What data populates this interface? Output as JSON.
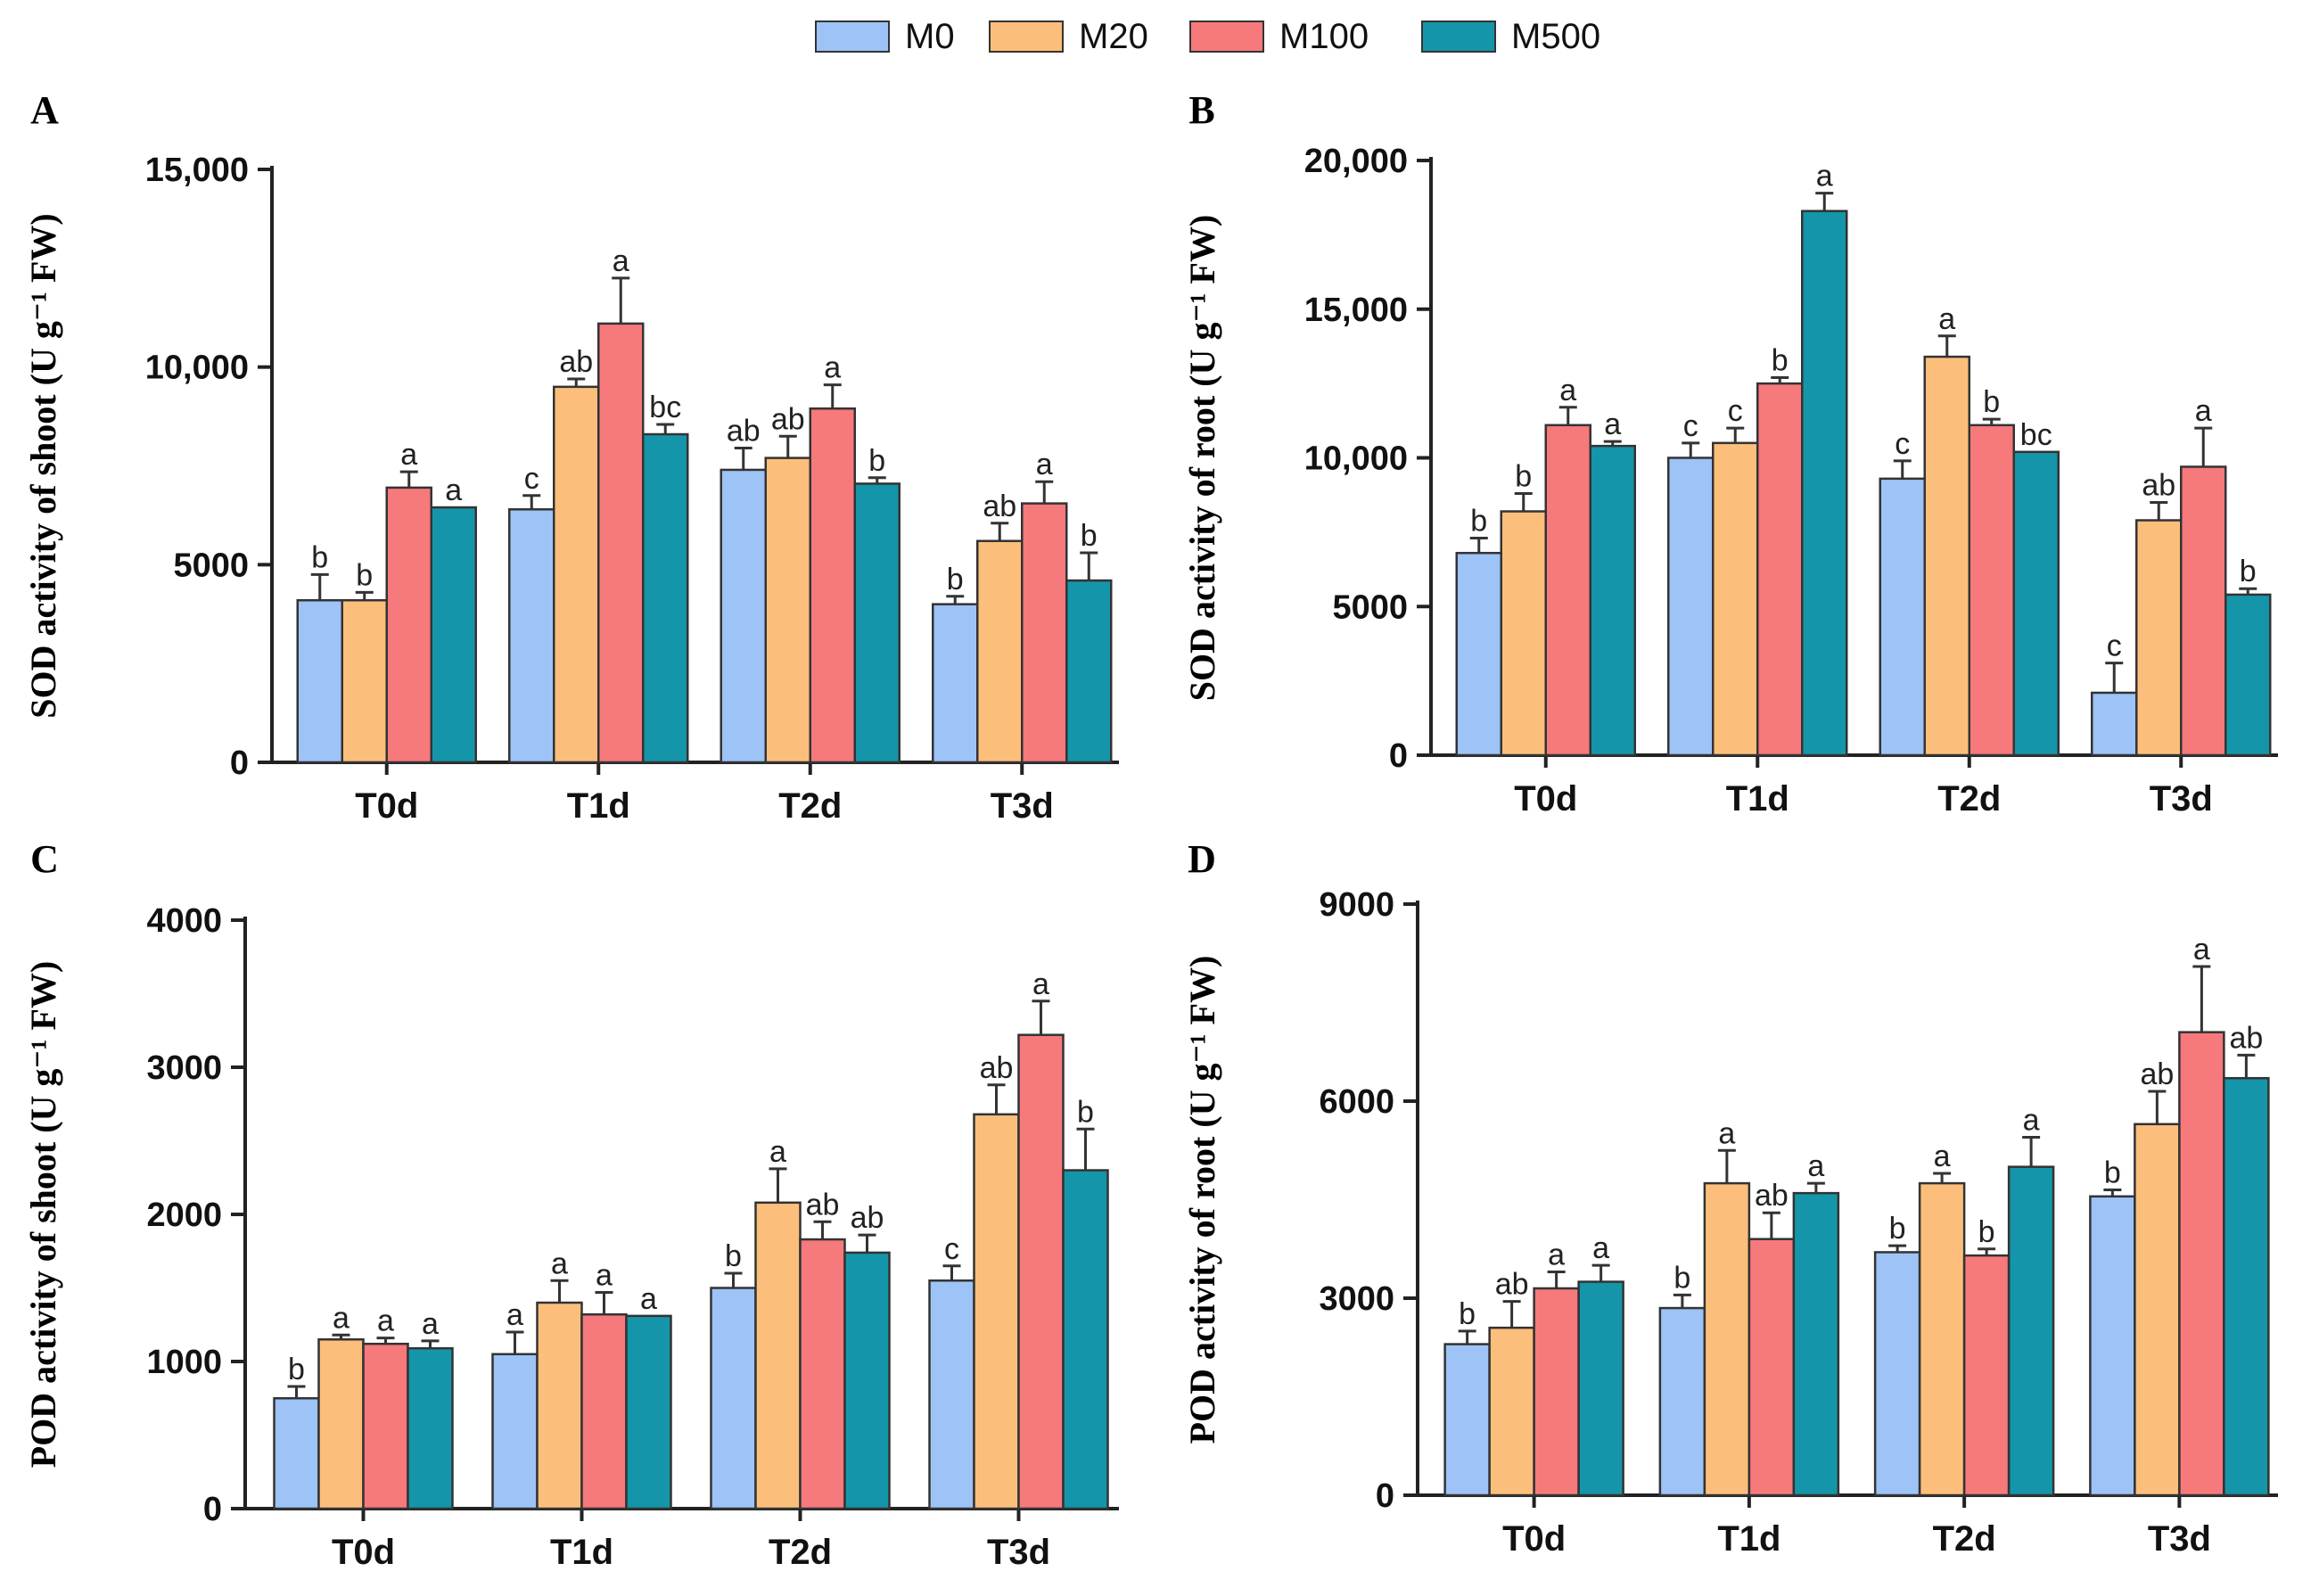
{
  "legend": [
    {
      "name": "M0",
      "color": "#9dc3f7"
    },
    {
      "name": "M20",
      "color": "#fcbf7b"
    },
    {
      "name": "M100",
      "color": "#f6797c"
    },
    {
      "name": "M500",
      "color": "#1595a9"
    }
  ],
  "chart_data": [
    {
      "type": "bar",
      "panel": "A",
      "ylabel": "SOD activity of shoot (U g⁻¹ FW)",
      "ylim": [
        0,
        15000
      ],
      "yticks": [
        0,
        5000,
        10000,
        15000
      ],
      "ytick_labels": [
        "0",
        "5000",
        "10,000",
        "15,000"
      ],
      "categories": [
        "T0d",
        "T1d",
        "T2d",
        "T3d"
      ],
      "series": [
        {
          "name": "M0",
          "values": [
            4100,
            6400,
            7400,
            4000
          ],
          "errors": [
            650,
            350,
            550,
            200
          ],
          "letters": [
            "b",
            "c",
            "ab",
            "b"
          ]
        },
        {
          "name": "M20",
          "values": [
            4100,
            9500,
            7700,
            5600
          ],
          "errors": [
            200,
            200,
            550,
            450
          ],
          "letters": [
            "b",
            "ab",
            "ab",
            "ab"
          ]
        },
        {
          "name": "M100",
          "values": [
            6950,
            11100,
            8950,
            6550
          ],
          "errors": [
            400,
            1150,
            600,
            550
          ],
          "letters": [
            "a",
            "a",
            "a",
            "a"
          ]
        },
        {
          "name": "M500",
          "values": [
            6450,
            8300,
            7050,
            4600
          ],
          "errors": [
            0,
            250,
            150,
            700
          ],
          "letters": [
            "a",
            "bc",
            "b",
            "b"
          ]
        }
      ]
    },
    {
      "type": "bar",
      "panel": "B",
      "ylabel": "SOD activity of root (U g⁻¹ FW)",
      "ylim": [
        0,
        20000
      ],
      "yticks": [
        0,
        5000,
        10000,
        15000,
        20000
      ],
      "ytick_labels": [
        "0",
        "5000",
        "10,000",
        "15,000",
        "20,000"
      ],
      "categories": [
        "T0d",
        "T1d",
        "T2d",
        "T3d"
      ],
      "series": [
        {
          "name": "M0",
          "values": [
            6800,
            10000,
            9300,
            2100
          ],
          "errors": [
            500,
            500,
            600,
            1000
          ],
          "letters": [
            "b",
            "c",
            "c",
            "c"
          ]
        },
        {
          "name": "M20",
          "values": [
            8200,
            10500,
            13400,
            7900
          ],
          "errors": [
            600,
            500,
            700,
            600
          ],
          "letters": [
            "b",
            "c",
            "a",
            "ab"
          ]
        },
        {
          "name": "M100",
          "values": [
            11100,
            12500,
            11100,
            9700
          ],
          "errors": [
            600,
            200,
            200,
            1300
          ],
          "letters": [
            "a",
            "b",
            "b",
            "a"
          ]
        },
        {
          "name": "M500",
          "values": [
            10400,
            18300,
            10200,
            5400
          ],
          "errors": [
            150,
            600,
            0,
            200
          ],
          "letters": [
            "a",
            "a",
            "bc",
            "b"
          ]
        }
      ]
    },
    {
      "type": "bar",
      "panel": "C",
      "ylabel": "POD activity of shoot (U g⁻¹ FW)",
      "ylim": [
        0,
        4000
      ],
      "yticks": [
        0,
        1000,
        2000,
        3000,
        4000
      ],
      "ytick_labels": [
        "0",
        "1000",
        "2000",
        "3000",
        "4000"
      ],
      "categories": [
        "T0d",
        "T1d",
        "T2d",
        "T3d"
      ],
      "series": [
        {
          "name": "M0",
          "values": [
            750,
            1050,
            1500,
            1550
          ],
          "errors": [
            80,
            150,
            100,
            100
          ],
          "letters": [
            "b",
            "a",
            "b",
            "c"
          ]
        },
        {
          "name": "M20",
          "values": [
            1150,
            1400,
            2080,
            2680
          ],
          "errors": [
            30,
            150,
            230,
            200
          ],
          "letters": [
            "a",
            "a",
            "a",
            "ab"
          ]
        },
        {
          "name": "M100",
          "values": [
            1120,
            1320,
            1830,
            3220
          ],
          "errors": [
            40,
            150,
            120,
            230
          ],
          "letters": [
            "a",
            "a",
            "ab",
            "a"
          ]
        },
        {
          "name": "M500",
          "values": [
            1090,
            1310,
            1740,
            2300
          ],
          "errors": [
            50,
            0,
            120,
            280
          ],
          "letters": [
            "a",
            "a",
            "ab",
            "b"
          ]
        }
      ]
    },
    {
      "type": "bar",
      "panel": "D",
      "ylabel": "POD activity of root (U g⁻¹ FW)",
      "ylim": [
        0,
        9000
      ],
      "yticks": [
        0,
        3000,
        6000,
        9000
      ],
      "ytick_labels": [
        "0",
        "3000",
        "6000",
        "9000"
      ],
      "categories": [
        "T0d",
        "T1d",
        "T2d",
        "T3d"
      ],
      "series": [
        {
          "name": "M0",
          "values": [
            2300,
            2850,
            3700,
            4550
          ],
          "errors": [
            200,
            200,
            100,
            100
          ],
          "letters": [
            "b",
            "b",
            "b",
            "b"
          ]
        },
        {
          "name": "M20",
          "values": [
            2550,
            4750,
            4750,
            5650
          ],
          "errors": [
            400,
            500,
            150,
            500
          ],
          "letters": [
            "ab",
            "a",
            "a",
            "ab"
          ]
        },
        {
          "name": "M100",
          "values": [
            3150,
            3900,
            3650,
            7050
          ],
          "errors": [
            250,
            400,
            100,
            1000
          ],
          "letters": [
            "a",
            "ab",
            "b",
            "a"
          ]
        },
        {
          "name": "M500",
          "values": [
            3250,
            4600,
            5000,
            6350
          ],
          "errors": [
            250,
            150,
            450,
            350
          ],
          "letters": [
            "a",
            "a",
            "a",
            "ab"
          ]
        }
      ]
    }
  ]
}
